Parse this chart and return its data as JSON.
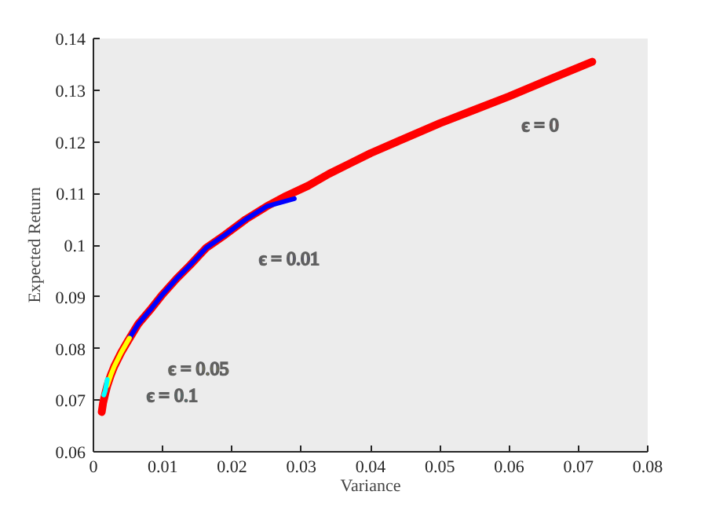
{
  "chart_data": {
    "type": "line",
    "xlabel": "Variance",
    "ylabel": "Expected Return",
    "xlim": [
      0,
      0.08
    ],
    "ylim": [
      0.06,
      0.14
    ],
    "xticks": [
      0,
      0.01,
      0.02,
      0.03,
      0.04,
      0.05,
      0.06,
      0.07,
      0.08
    ],
    "yticks": [
      0.06,
      0.07,
      0.08,
      0.09,
      {
        "value": 0.1,
        "label": "0.1"
      },
      0.11,
      0.12,
      0.13,
      0.14
    ],
    "marker": "none",
    "line_style": "solid",
    "series": [
      {
        "name": "ϵ = 0",
        "color": "#ff0000",
        "x": [
          0.0012,
          0.0014,
          0.0017,
          0.002,
          0.0025,
          0.003,
          0.004,
          0.005,
          0.0065,
          0.0084,
          0.01,
          0.012,
          0.014,
          0.0163,
          0.019,
          0.022,
          0.025,
          0.0278,
          0.031,
          0.034,
          0.037,
          0.04,
          0.045,
          0.05,
          0.055,
          0.06,
          0.066,
          0.072
        ],
        "values": [
          0.0677,
          0.0695,
          0.0712,
          0.0728,
          0.0748,
          0.0765,
          0.0792,
          0.0815,
          0.0848,
          0.0878,
          0.0905,
          0.0935,
          0.0962,
          0.0995,
          0.102,
          0.105,
          0.1075,
          0.1095,
          0.1115,
          0.1138,
          0.1158,
          0.1178,
          0.1207,
          0.1236,
          0.1262,
          0.1288,
          0.1322,
          0.1355
        ]
      },
      {
        "name": "ϵ = 0.01",
        "color": "#0000ff",
        "x": [
          0.0052,
          0.0065,
          0.0084,
          0.01,
          0.012,
          0.014,
          0.0163,
          0.019,
          0.022,
          0.025,
          0.029
        ],
        "values": [
          0.082,
          0.0848,
          0.0878,
          0.0905,
          0.0935,
          0.0962,
          0.0995,
          0.102,
          0.105,
          0.1075,
          0.109
        ]
      },
      {
        "name": "ϵ = 0.05",
        "color": "#ffff00",
        "x": [
          0.002,
          0.0025,
          0.003,
          0.004,
          0.0052
        ],
        "values": [
          0.0728,
          0.0748,
          0.0765,
          0.0792,
          0.082
        ]
      },
      {
        "name": "ϵ = 0.1",
        "color": "#00ffff",
        "x": [
          0.0015,
          0.0017,
          0.002
        ],
        "values": [
          0.071,
          0.0718,
          0.074
        ]
      }
    ]
  }
}
